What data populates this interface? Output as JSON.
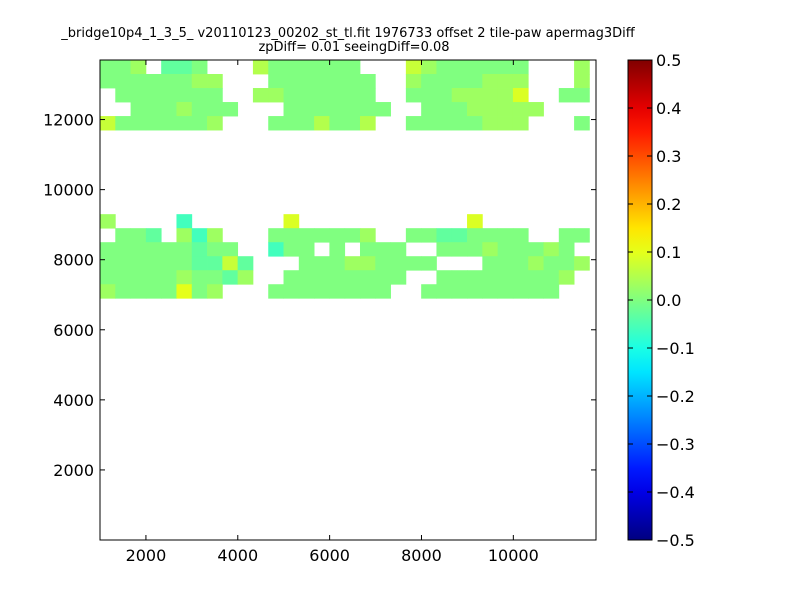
{
  "figure": {
    "title_line1": "_bridge10p4_1_3_5_ v20110123_00202_st_tl.fit 1976733 offset 2 tile-paw apermag3Diff",
    "title_line2": "zpDiff= 0.01 seeingDiff=0.08"
  },
  "chart_data": {
    "type": "heatmap",
    "title": "_bridge10p4_1_3_5_ v20110123_00202_st_tl.fit 1976733 offset 2 tile-paw apermag3Diff",
    "subtitle": "zpDiff= 0.01 seeingDiff=0.08",
    "xlabel": "",
    "ylabel": "",
    "xlim": [
      1000,
      11800
    ],
    "ylim": [
      0,
      13700
    ],
    "xticks": [
      2000,
      4000,
      6000,
      8000,
      10000
    ],
    "yticks": [
      2000,
      4000,
      6000,
      8000,
      10000,
      12000
    ],
    "colorbar": {
      "colormap": "jet",
      "vmin": -0.5,
      "vmax": 0.5,
      "ticks": [
        -0.5,
        -0.4,
        -0.3,
        -0.2,
        -0.1,
        0.0,
        0.1,
        0.2,
        0.3,
        0.4,
        0.5
      ],
      "tick_labels": [
        "−0.5",
        "−0.4",
        "−0.3",
        "−0.2",
        "−0.1",
        "0.0",
        "0.1",
        "0.2",
        "0.3",
        "0.4",
        "0.5"
      ]
    },
    "cell": {
      "col_start": 1000,
      "col_width": 333,
      "row_start": 13700,
      "row_height": 400
    },
    "grid_rows": [
      "AAB.GGA...DAAAAAA...HBAAAAAA...BBBBB.",
      "AAAAAABB...AAAAAAA..BAAAABBB...BBBAAA",
      ".AAAAAAA..BBAAAAAA..AAABBBBK..AAAAAAA",
      "..AAABAAA...AAAAAAA..AAABBBBB...AAAAMA",
      "HAAAAAAB...AAADAAD..AAAAABBB...AAABSAA",
      "..................................",
      "..................................",
      "..................................",
      "..................................",
      "..................................",
      "..................................",
      "B....C......K...........K............",
      ".AAG.BCB...AAAAAAB..AAGGAAAA..AAAABBB",
      "AAAAAAGAA..CAA.A.AAA..AAABAAABA..DBCAABAAB",
      "AAAAAAGGHG...AAABBAAAA...AAABAABB..PAAAA..AAA",
      "AAAAABAAGB..AAAAAAAA..AAAAAAAAB..AAAAAAAA",
      "BAAAAFAB...AAAAAAAA..AAAAAAAAA..AAAAAAAAA"
    ]
  }
}
